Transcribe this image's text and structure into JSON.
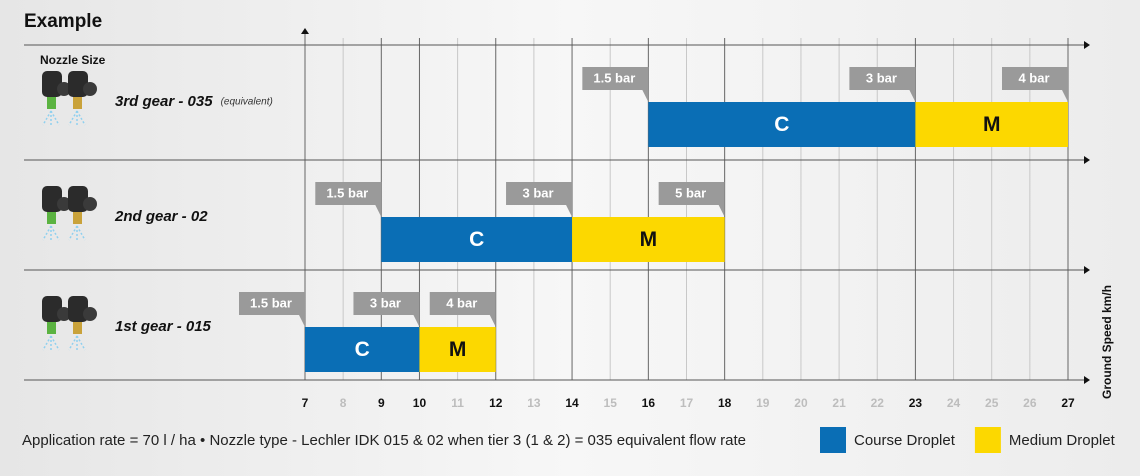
{
  "chart_data": {
    "type": "range-bar",
    "title": "Example",
    "row_header": "Nozzle Size",
    "categories": [
      "3rd gear - 035",
      "2nd gear - 02",
      "1st gear - 015"
    ],
    "category_notes": [
      "(equivalent)",
      null,
      null
    ],
    "xlabel": "Ground Speed km/h",
    "xlim": [
      7,
      27
    ],
    "xticks": [
      7,
      8,
      9,
      10,
      11,
      12,
      13,
      14,
      15,
      16,
      17,
      18,
      19,
      20,
      21,
      22,
      23,
      24,
      25,
      26,
      27
    ],
    "series": [
      {
        "name": "Course Droplet",
        "label": "C",
        "color": "#0a6eb5",
        "values": [
          [
            16,
            23
          ],
          [
            9,
            14
          ],
          [
            7,
            10
          ]
        ]
      },
      {
        "name": "Medium Droplet",
        "label": "M",
        "color": "#fcd800",
        "values": [
          [
            23,
            27
          ],
          [
            14,
            18
          ],
          [
            10,
            12
          ]
        ]
      }
    ],
    "pressures": [
      [
        {
          "x": 16,
          "label": "1.5 bar"
        },
        {
          "x": 23,
          "label": "3 bar"
        },
        {
          "x": 27,
          "label": "4 bar"
        }
      ],
      [
        {
          "x": 9,
          "label": "1.5 bar"
        },
        {
          "x": 14,
          "label": "3 bar"
        },
        {
          "x": 18,
          "label": "5 bar"
        }
      ],
      [
        {
          "x": 7,
          "label": "1.5 bar"
        },
        {
          "x": 10,
          "label": "3 bar"
        },
        {
          "x": 12,
          "label": "4 bar"
        }
      ]
    ],
    "footnote": "Application rate = 70 l / ha  •  Nozzle type - Lechler IDK 015 & 02 when tier 3 (1 & 2) = 035 equivalent flow rate"
  }
}
